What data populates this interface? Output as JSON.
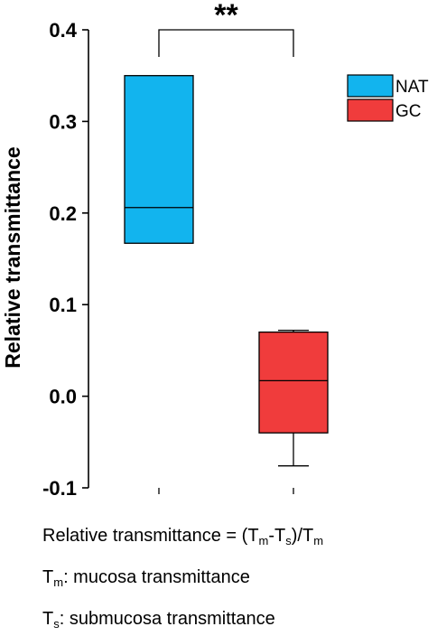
{
  "chart_data": {
    "type": "box",
    "ylabel": "Relative transmittance",
    "xlabel": "",
    "ylim": [
      -0.1,
      0.4
    ],
    "yticks": [
      -0.1,
      0.0,
      0.1,
      0.2,
      0.3,
      0.4
    ],
    "ytick_labels": [
      "-0.1",
      "0.0",
      "0.1",
      "0.2",
      "0.3",
      "0.4"
    ],
    "series": [
      {
        "name": "NAT",
        "color": "#12b4ee",
        "q1": 0.167,
        "median": 0.206,
        "q3": 0.35,
        "whisker_low": 0.167,
        "whisker_high": 0.35
      },
      {
        "name": "GC",
        "color": "#f03c3c",
        "q1": -0.04,
        "median": 0.017,
        "q3": 0.07,
        "whisker_low": -0.076,
        "whisker_high": 0.072
      }
    ],
    "significance": {
      "label": "**",
      "between": [
        "NAT",
        "GC"
      ]
    },
    "legend": {
      "position": "top-right"
    }
  },
  "notes": {
    "formula": {
      "prefix": "Relative transmittance = (T",
      "sub1": "m",
      "mid": "-T",
      "sub2": "s",
      "mid2": ")/T",
      "sub3": "m"
    },
    "tm": {
      "main": "T",
      "sub": "m",
      "rest": ": mucosa transmittance"
    },
    "ts": {
      "main": "T",
      "sub": "s",
      "rest": ": submucosa transmittance"
    }
  }
}
